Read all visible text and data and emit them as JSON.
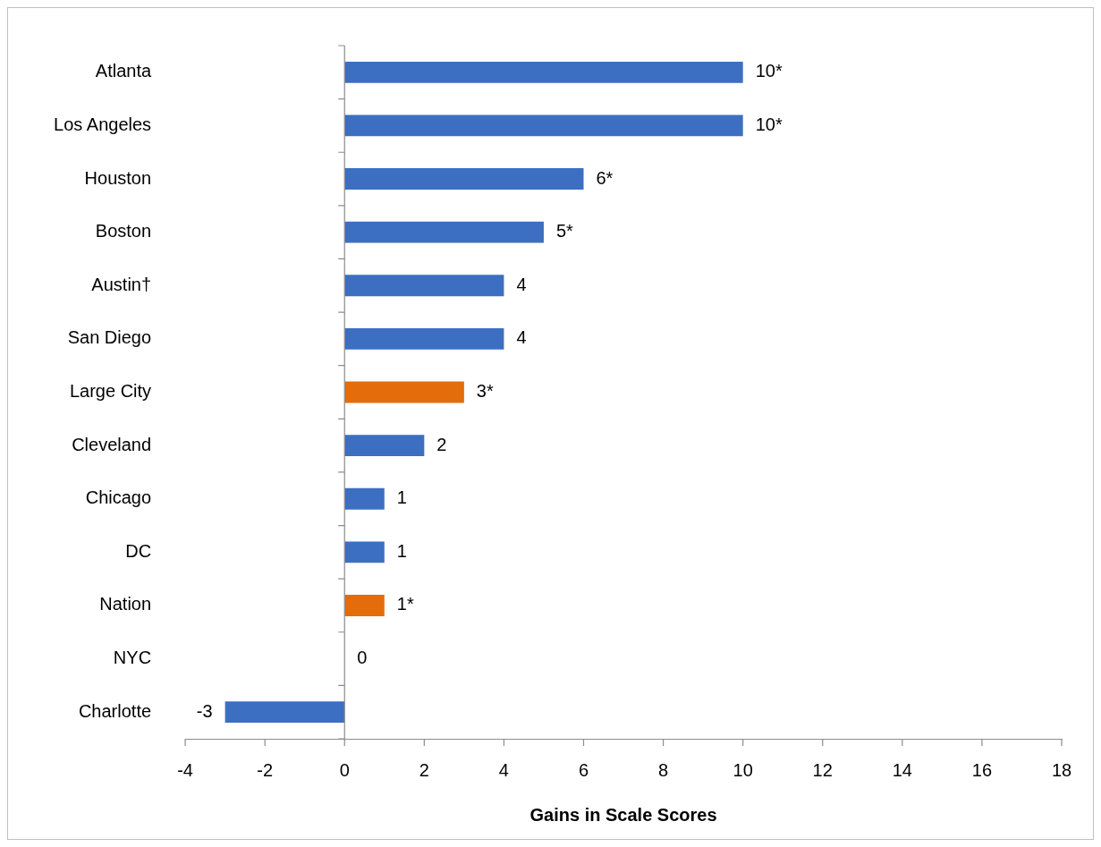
{
  "chart_data": {
    "type": "bar",
    "orientation": "horizontal",
    "xlabel": "Gains in Scale Scores",
    "categories": [
      "Atlanta",
      "Los Angeles",
      "Houston",
      "Boston",
      "Austin†",
      "San Diego",
      "Large City",
      "Cleveland",
      "Chicago",
      "DC",
      "Nation",
      "NYC",
      "Charlotte"
    ],
    "values": [
      10,
      10,
      6,
      5,
      4,
      4,
      3,
      2,
      1,
      1,
      1,
      0,
      -3
    ],
    "colors": [
      "#3c6fc2",
      "#3c6fc2",
      "#3c6fc2",
      "#3c6fc2",
      "#3c6fc2",
      "#3c6fc2",
      "#e46c0a",
      "#3c6fc2",
      "#3c6fc2",
      "#3c6fc2",
      "#e46c0a",
      "#3c6fc2",
      "#3c6fc2"
    ],
    "value_labels": [
      "10*",
      "10*",
      "6*",
      "5*",
      "4",
      "4",
      "3*",
      "2",
      "1",
      "1",
      "1*",
      "0",
      "-3"
    ],
    "xlim": [
      -4,
      18
    ],
    "xticks": [
      -4,
      -2,
      0,
      2,
      4,
      6,
      8,
      10,
      12,
      14,
      16,
      18
    ],
    "legend": false
  }
}
